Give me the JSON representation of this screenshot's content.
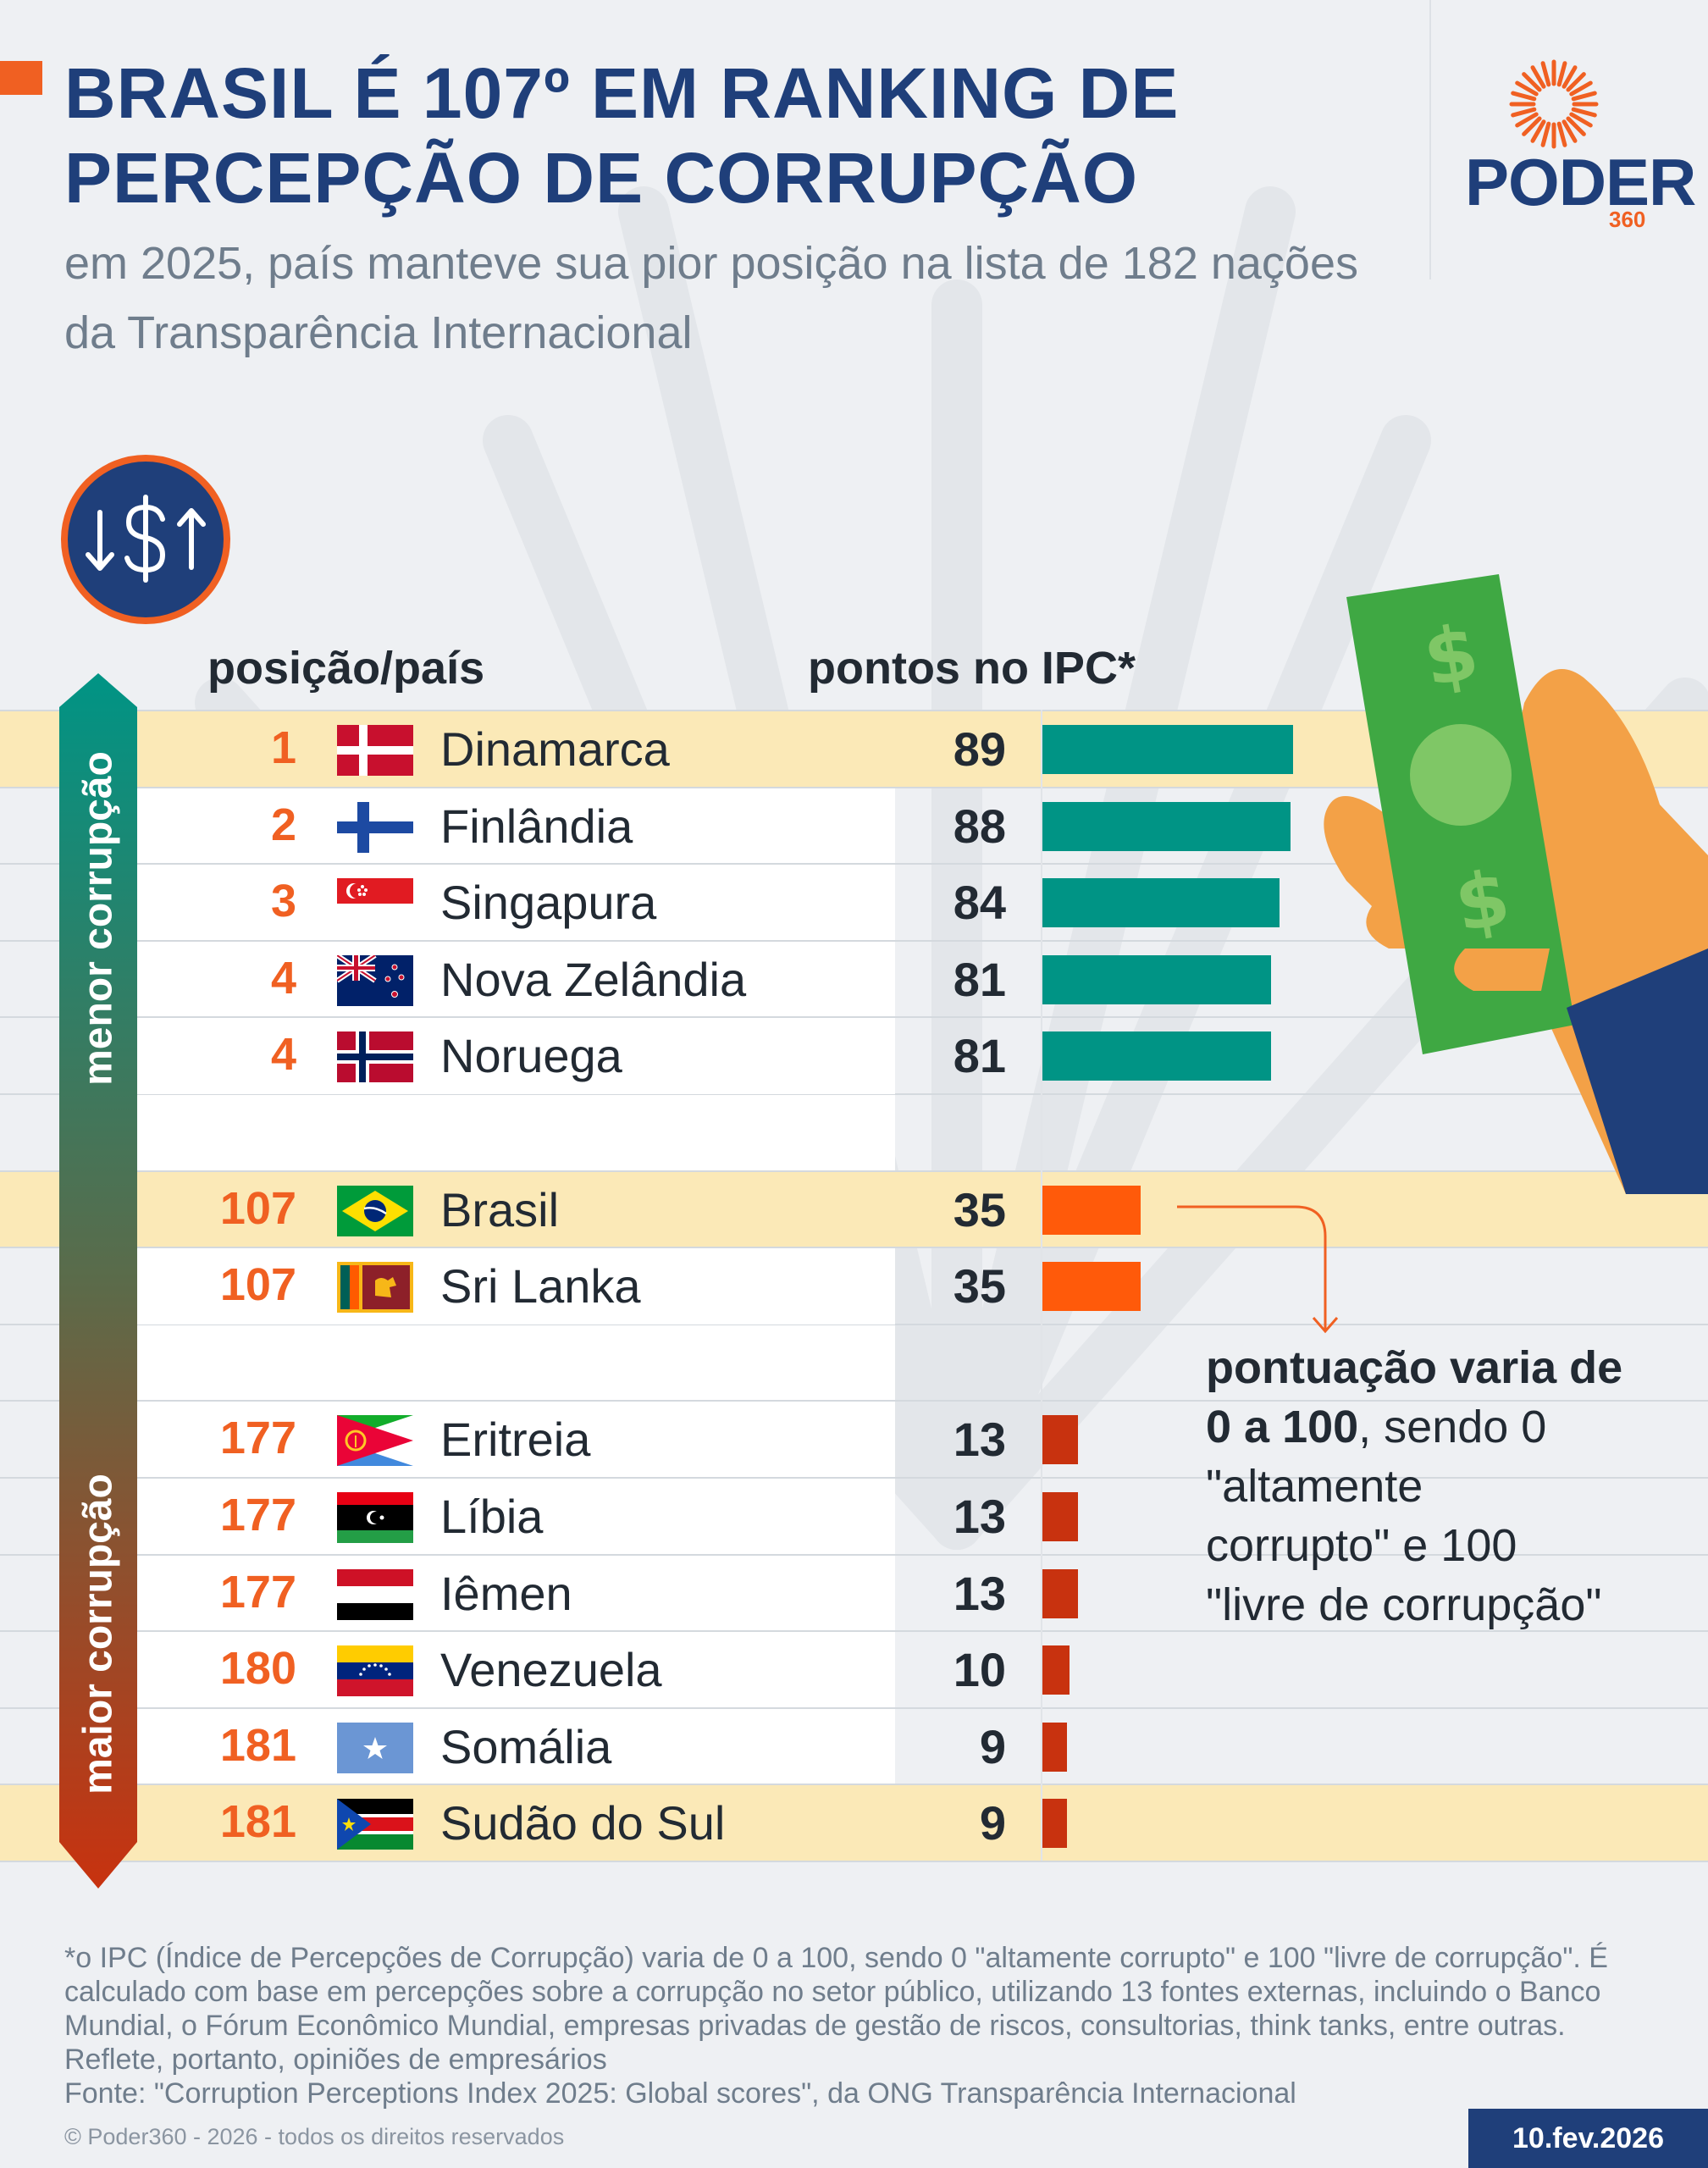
{
  "title": "BRASIL É 107º EM RANKING DE PERCEPÇÃO DE CORRUPÇÃO",
  "title_lines": [
    "BRASIL É 107º EM RANKING DE",
    "PERCEPÇÃO DE CORRUPÇÃO"
  ],
  "subtitle": "em 2025, país manteve sua pior posição na lista de 182 nações da Transparência Internacional",
  "logo": {
    "name": "PODER",
    "number": "360"
  },
  "icon": "dollar-up-down-icon",
  "headers": {
    "position_country": "posição/país",
    "score": "pontos no IPC*"
  },
  "side_labels": {
    "top": "menor corrupção",
    "bottom": "maior corrupção"
  },
  "colors": {
    "top_group": "#009485",
    "brazil_group": "#ff5a0a",
    "bottom_group": "#c8320f",
    "highlight": "#fbe9b7",
    "title": "#1f3f7a",
    "accent": "#f06022"
  },
  "chart_data": {
    "type": "bar",
    "orientation": "horizontal",
    "xlim": [
      0,
      100
    ],
    "rows": [
      {
        "rank": "1",
        "country": "Dinamarca",
        "score": 89,
        "flag": "denmark",
        "group": "top",
        "highlight": true
      },
      {
        "rank": "2",
        "country": "Finlândia",
        "score": 88,
        "flag": "finland",
        "group": "top",
        "highlight": false
      },
      {
        "rank": "3",
        "country": "Singapura",
        "score": 84,
        "flag": "singapore",
        "group": "top",
        "highlight": false
      },
      {
        "rank": "4",
        "country": "Nova Zelândia",
        "score": 81,
        "flag": "new-zealand",
        "group": "top",
        "highlight": false
      },
      {
        "rank": "4",
        "country": "Noruega",
        "score": 81,
        "flag": "norway",
        "group": "top",
        "highlight": false
      },
      {
        "rank": "107",
        "country": "Brasil",
        "score": 35,
        "flag": "brazil",
        "group": "brazil",
        "highlight": true
      },
      {
        "rank": "107",
        "country": "Sri Lanka",
        "score": 35,
        "flag": "sri-lanka",
        "group": "brazil",
        "highlight": false
      },
      {
        "rank": "177",
        "country": "Eritreia",
        "score": 13,
        "flag": "eritrea",
        "group": "bottom",
        "highlight": false
      },
      {
        "rank": "177",
        "country": "Líbia",
        "score": 13,
        "flag": "libya",
        "group": "bottom",
        "highlight": false
      },
      {
        "rank": "177",
        "country": "Iêmen",
        "score": 13,
        "flag": "yemen",
        "group": "bottom",
        "highlight": false
      },
      {
        "rank": "180",
        "country": "Venezuela",
        "score": 10,
        "flag": "venezuela",
        "group": "bottom",
        "highlight": false
      },
      {
        "rank": "181",
        "country": "Somália",
        "score": 9,
        "flag": "somalia",
        "group": "bottom",
        "highlight": false
      },
      {
        "rank": "181",
        "country": "Sudão do Sul",
        "score": 9,
        "flag": "south-sudan",
        "group": "bottom",
        "highlight": true
      }
    ]
  },
  "annotation": {
    "bold_1": "pontuação varia de",
    "bold_2": "0 a 100",
    "rest_1": ", sendo 0",
    "rest_2": "\"altamente",
    "rest_3": "corrupto\" e 100",
    "rest_4": "\"livre de corrupção\""
  },
  "footnote": "*o IPC (Índice de Percepções de Corrupção) varia de 0 a 100, sendo 0 \"altamente corrupto\" e 100 \"livre de corrupção\". É calculado com base em percepções sobre a corrupção no setor público, utilizando 13 fontes externas, incluindo o Banco Mundial, o Fórum Econômico Mundial, empresas privadas de gestão de riscos, consultorias, think tanks, entre outras. Reflete, portanto, opiniões de empresários",
  "source": "Fonte: \"Corruption Perceptions Index 2025: Global scores\", da ONG Transparência Internacional",
  "copyright": "© Poder360 - 2026 - todos os direitos reservados",
  "date": "10.fev.2026"
}
